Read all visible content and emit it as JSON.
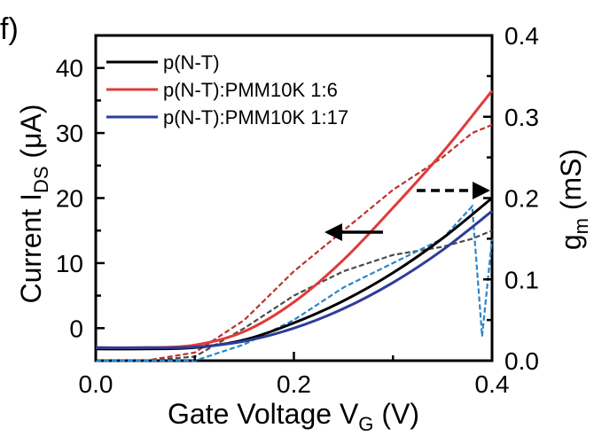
{
  "chart_data": {
    "type": "line",
    "panel_label": "f)",
    "xlabel": "Gate Voltage V",
    "xlabel_sub": "G",
    "xlabel_unit": " (V)",
    "ylabel_left": "Current I",
    "ylabel_left_sub": "DS",
    "ylabel_left_unit": " (μA)",
    "ylabel_right": "g",
    "ylabel_right_sub": "m",
    "ylabel_right_unit": " (mS)",
    "xlim": [
      0.0,
      0.4
    ],
    "ylim_left": [
      -5,
      45
    ],
    "ylim_right": [
      0.0,
      0.4
    ],
    "x_ticks": [
      "0.0",
      "0.2",
      "0.4"
    ],
    "y_left_ticks": [
      "0",
      "10",
      "20",
      "30",
      "40"
    ],
    "y_right_ticks": [
      "0.0",
      "0.1",
      "0.2",
      "0.3",
      "0.4"
    ],
    "legend_position": "top-left",
    "series": [
      {
        "name": "p(N-T)",
        "color": "#000000",
        "current_uA": {
          "x": [
            0.0,
            0.05,
            0.1,
            0.15,
            0.2,
            0.25,
            0.3,
            0.35,
            0.4
          ],
          "y": [
            -3.2,
            -3.2,
            -3.0,
            -1.8,
            0.8,
            4.2,
            8.5,
            13.8,
            20.0
          ]
        },
        "gm_mS": {
          "x": [
            0.0,
            0.05,
            0.1,
            0.15,
            0.2,
            0.25,
            0.3,
            0.35,
            0.38,
            0.4
          ],
          "y": [
            0.0,
            0.0,
            0.005,
            0.04,
            0.08,
            0.11,
            0.13,
            0.14,
            0.15,
            0.16
          ]
        }
      },
      {
        "name": "p(N-T):PMM10K 1:6",
        "color": "#e03a3a",
        "current_uA": {
          "x": [
            0.0,
            0.05,
            0.1,
            0.15,
            0.2,
            0.25,
            0.3,
            0.35,
            0.4
          ],
          "y": [
            -3.0,
            -3.0,
            -2.6,
            -0.5,
            4.0,
            10.5,
            18.5,
            27.0,
            36.5
          ]
        },
        "gm_mS": {
          "x": [
            0.0,
            0.05,
            0.1,
            0.15,
            0.2,
            0.25,
            0.3,
            0.35,
            0.38,
            0.4
          ],
          "y": [
            0.0,
            0.0,
            0.01,
            0.05,
            0.11,
            0.16,
            0.21,
            0.25,
            0.28,
            0.29
          ]
        }
      },
      {
        "name": "p(N-T):PMM10K 1:17",
        "color": "#2e3c9a",
        "current_uA": {
          "x": [
            0.0,
            0.05,
            0.1,
            0.15,
            0.2,
            0.25,
            0.3,
            0.35,
            0.4
          ],
          "y": [
            -3.0,
            -3.0,
            -2.9,
            -2.0,
            0.0,
            3.0,
            7.0,
            12.0,
            18.0
          ]
        },
        "gm_mS": {
          "x": [
            0.0,
            0.05,
            0.1,
            0.15,
            0.2,
            0.25,
            0.3,
            0.35,
            0.38,
            0.39,
            0.4
          ],
          "y": [
            0.0,
            0.0,
            0.0,
            0.02,
            0.05,
            0.09,
            0.12,
            0.15,
            0.19,
            0.03,
            0.15
          ]
        }
      }
    ],
    "annotations": [
      {
        "type": "arrow",
        "direction": "left",
        "style": "solid",
        "meaning": "left axis"
      },
      {
        "type": "arrow",
        "direction": "right",
        "style": "dashed",
        "meaning": "right axis"
      }
    ]
  }
}
